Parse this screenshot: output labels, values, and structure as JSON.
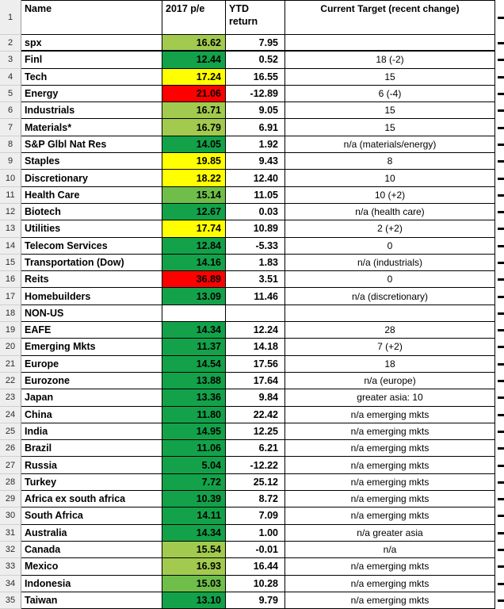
{
  "colors": {
    "green": "#13A24A",
    "midgreen": "#6FBE4A",
    "lightgreen": "#A2CA4E",
    "yellow": "#FFFF00",
    "red": "#FF0000"
  },
  "header": {
    "row_number": "1",
    "name": "Name",
    "pe": "2017 p/e",
    "ytd": "YTD return",
    "target": "Current Target (recent change)"
  },
  "rows": [
    {
      "num": "2",
      "name": "spx",
      "pe": "16.62",
      "ytd": "7.95",
      "target": "",
      "color": "lightgreen"
    },
    {
      "num": "3",
      "name": "Finl",
      "pe": "12.44",
      "ytd": "0.52",
      "target": "18 (-2)",
      "color": "green"
    },
    {
      "num": "4",
      "name": "Tech",
      "pe": "17.24",
      "ytd": "16.55",
      "target": "15",
      "color": "yellow"
    },
    {
      "num": "5",
      "name": "Energy",
      "pe": "21.06",
      "ytd": "-12.89",
      "target": "6 (-4)",
      "color": "red"
    },
    {
      "num": "6",
      "name": "Industrials",
      "pe": "16.71",
      "ytd": "9.05",
      "target": "15",
      "color": "lightgreen"
    },
    {
      "num": "7",
      "name": "Materials*",
      "pe": "16.79",
      "ytd": "6.91",
      "target": "15",
      "color": "lightgreen"
    },
    {
      "num": "8",
      "name": "S&P Glbl Nat Res",
      "pe": "14.05",
      "ytd": "1.92",
      "target": "n/a (materials/energy)",
      "color": "green"
    },
    {
      "num": "9",
      "name": "Staples",
      "pe": "19.85",
      "ytd": "9.43",
      "target": "8",
      "color": "yellow"
    },
    {
      "num": "10",
      "name": "Discretionary",
      "pe": "18.22",
      "ytd": "12.40",
      "target": "10",
      "color": "yellow"
    },
    {
      "num": "11",
      "name": "Health Care",
      "pe": "15.14",
      "ytd": "11.05",
      "target": "10 (+2)",
      "color": "midgreen"
    },
    {
      "num": "12",
      "name": "Biotech",
      "pe": "12.67",
      "ytd": "0.03",
      "target": "n/a (health care)",
      "color": "green"
    },
    {
      "num": "13",
      "name": "Utilities",
      "pe": "17.74",
      "ytd": "10.89",
      "target": "2 (+2)",
      "color": "yellow"
    },
    {
      "num": "14",
      "name": "Telecom Services",
      "pe": "12.84",
      "ytd": "-5.33",
      "target": "0",
      "color": "green"
    },
    {
      "num": "15",
      "name": "Transportation (Dow)",
      "pe": "14.16",
      "ytd": "1.83",
      "target": "n/a (industrials)",
      "color": "green"
    },
    {
      "num": "16",
      "name": "Reits",
      "pe": "36.89",
      "ytd": "3.51",
      "target": "0",
      "color": "red"
    },
    {
      "num": "17",
      "name": "Homebuilders",
      "pe": "13.09",
      "ytd": "11.46",
      "target": "n/a (discretionary)",
      "color": "green"
    },
    {
      "num": "18",
      "name": "NON-US",
      "pe": "",
      "ytd": "",
      "target": "",
      "color": ""
    },
    {
      "num": "19",
      "name": "EAFE",
      "pe": "14.34",
      "ytd": "12.24",
      "target": "28",
      "color": "green"
    },
    {
      "num": "20",
      "name": "Emerging Mkts",
      "pe": "11.37",
      "ytd": "14.18",
      "target": "7 (+2)",
      "color": "green"
    },
    {
      "num": "21",
      "name": "Europe",
      "pe": "14.54",
      "ytd": "17.56",
      "target": "18",
      "color": "green"
    },
    {
      "num": "22",
      "name": "Eurozone",
      "pe": "13.88",
      "ytd": "17.64",
      "target": "n/a (europe)",
      "color": "green"
    },
    {
      "num": "23",
      "name": "Japan",
      "pe": "13.36",
      "ytd": "9.84",
      "target": "greater asia: 10",
      "color": "green"
    },
    {
      "num": "24",
      "name": "China",
      "pe": "11.80",
      "ytd": "22.42",
      "target": "n/a emerging mkts",
      "color": "green"
    },
    {
      "num": "25",
      "name": "India",
      "pe": "14.95",
      "ytd": "12.25",
      "target": "n/a emerging mkts",
      "color": "green"
    },
    {
      "num": "26",
      "name": "Brazil",
      "pe": "11.06",
      "ytd": "6.21",
      "target": "n/a emerging mkts",
      "color": "green"
    },
    {
      "num": "27",
      "name": "Russia",
      "pe": "5.04",
      "ytd": "-12.22",
      "target": "n/a emerging mkts",
      "color": "green"
    },
    {
      "num": "28",
      "name": "Turkey",
      "pe": "7.72",
      "ytd": "25.12",
      "target": "n/a emerging mkts",
      "color": "green"
    },
    {
      "num": "29",
      "name": "Africa ex south africa",
      "pe": "10.39",
      "ytd": "8.72",
      "target": "n/a emerging mkts",
      "color": "green"
    },
    {
      "num": "30",
      "name": "South Africa",
      "pe": "14.11",
      "ytd": "7.09",
      "target": "n/a emerging mkts",
      "color": "green"
    },
    {
      "num": "31",
      "name": "Australia",
      "pe": "14.34",
      "ytd": "1.00",
      "target": "n/a greater asia",
      "color": "green"
    },
    {
      "num": "32",
      "name": "Canada",
      "pe": "15.54",
      "ytd": "-0.01",
      "target": "n/a",
      "color": "lightgreen"
    },
    {
      "num": "33",
      "name": "Mexico",
      "pe": "16.93",
      "ytd": "16.44",
      "target": "n/a emerging mkts",
      "color": "lightgreen"
    },
    {
      "num": "34",
      "name": "Indonesia",
      "pe": "15.03",
      "ytd": "10.28",
      "target": "n/a emerging mkts",
      "color": "midgreen"
    },
    {
      "num": "35",
      "name": "Taiwan",
      "pe": "13.10",
      "ytd": "9.79",
      "target": "n/a emerging mkts",
      "color": "green"
    }
  ]
}
